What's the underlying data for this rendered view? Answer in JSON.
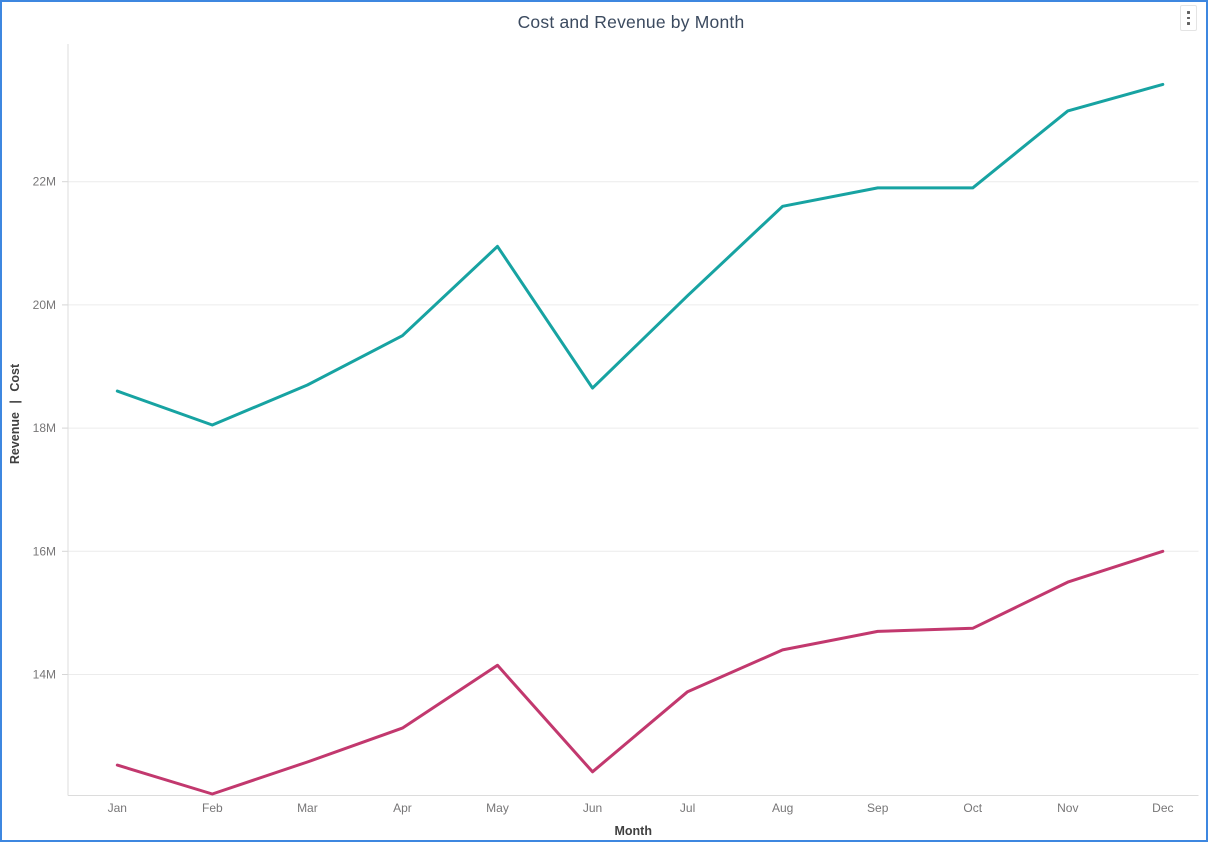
{
  "visual": {
    "more_options_icon": "kebab-vertical-icon",
    "border_color": "#3D87E0"
  },
  "chart_data": {
    "type": "line",
    "title": "Cost and Revenue by Month",
    "xlabel": "Month",
    "ylabel": "Revenue | Cost",
    "categories": [
      "Jan",
      "Feb",
      "Mar",
      "Apr",
      "May",
      "Jun",
      "Jul",
      "Aug",
      "Sep",
      "Oct",
      "Nov",
      "Dec"
    ],
    "series": [
      {
        "name": "Revenue",
        "color": "#17A3A2",
        "values": [
          18.6,
          18.05,
          18.7,
          19.5,
          20.95,
          18.65,
          20.15,
          21.6,
          21.9,
          21.9,
          23.15,
          23.58
        ]
      },
      {
        "name": "Cost",
        "color": "#C2386E",
        "values": [
          12.53,
          12.06,
          12.58,
          13.13,
          14.15,
          12.42,
          13.72,
          14.4,
          14.7,
          14.75,
          15.5,
          16.0
        ]
      }
    ],
    "units": "M",
    "y_ticks": [
      {
        "label": "14M",
        "value": 14
      },
      {
        "label": "16M",
        "value": 16
      },
      {
        "label": "18M",
        "value": 18
      },
      {
        "label": "20M",
        "value": 20
      },
      {
        "label": "22M",
        "value": 22
      }
    ],
    "ylim": [
      12.0,
      24.2
    ],
    "grid": true,
    "legend": "none"
  }
}
